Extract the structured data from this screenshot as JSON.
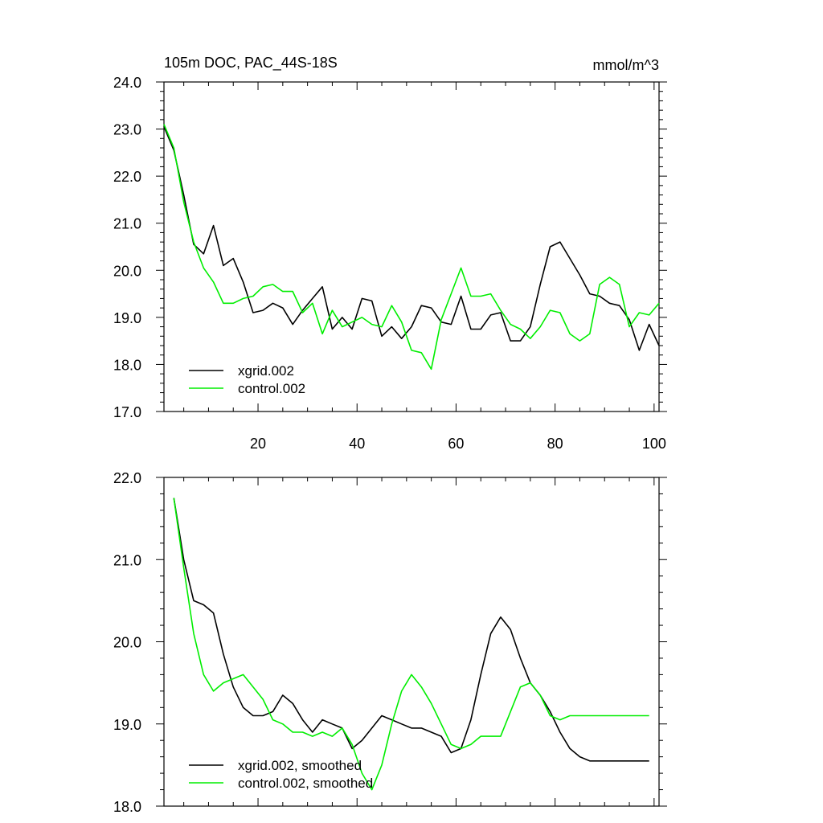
{
  "colors": {
    "series_a": "#000000",
    "series_b": "#00ee00",
    "axis": "#000000"
  },
  "chart_data": [
    {
      "type": "line",
      "title": "105m DOC, PAC_44S-18S",
      "units": "mmol/m^3",
      "xlabel": "",
      "ylabel": "",
      "xlim": [
        1,
        101
      ],
      "ylim": [
        17.0,
        24.0
      ],
      "yticks": [
        "17.0",
        "18.0",
        "19.0",
        "20.0",
        "21.0",
        "22.0",
        "23.0",
        "24.0"
      ],
      "xticks": [
        "20",
        "40",
        "60",
        "80",
        "100"
      ],
      "legend_position": "bottom-left",
      "series": [
        {
          "name": "xgrid.002",
          "color": "#000000",
          "x": [
            1,
            3,
            5,
            7,
            9,
            11,
            13,
            15,
            17,
            19,
            21,
            23,
            25,
            27,
            29,
            31,
            33,
            35,
            37,
            39,
            41,
            43,
            45,
            47,
            49,
            51,
            53,
            55,
            57,
            59,
            61,
            63,
            65,
            67,
            69,
            71,
            73,
            75,
            77,
            79,
            81,
            83,
            85,
            87,
            89,
            91,
            93,
            95,
            97,
            99,
            101
          ],
          "values": [
            23.05,
            22.55,
            21.6,
            20.55,
            20.35,
            20.95,
            20.1,
            20.25,
            19.75,
            19.1,
            19.15,
            19.3,
            19.2,
            18.85,
            19.15,
            19.4,
            19.65,
            18.75,
            19.0,
            18.75,
            19.4,
            19.35,
            18.6,
            18.8,
            18.55,
            18.8,
            19.25,
            19.2,
            18.9,
            18.85,
            19.45,
            18.75,
            18.75,
            19.05,
            19.1,
            18.5,
            18.5,
            18.8,
            19.7,
            20.5,
            20.6,
            20.25,
            19.9,
            19.5,
            19.45,
            19.3,
            19.25,
            18.95,
            18.3,
            18.85,
            18.4
          ]
        },
        {
          "name": "control.002",
          "color": "#00ee00",
          "x": [
            1,
            3,
            5,
            7,
            9,
            11,
            13,
            15,
            17,
            19,
            21,
            23,
            25,
            27,
            29,
            31,
            33,
            35,
            37,
            39,
            41,
            43,
            45,
            47,
            49,
            51,
            53,
            55,
            57,
            59,
            61,
            63,
            65,
            67,
            69,
            71,
            73,
            75,
            77,
            79,
            81,
            83,
            85,
            87,
            89,
            91,
            93,
            95,
            97,
            99,
            101
          ],
          "values": [
            23.1,
            22.6,
            21.45,
            20.6,
            20.05,
            19.75,
            19.3,
            19.3,
            19.4,
            19.45,
            19.65,
            19.7,
            19.55,
            19.55,
            19.1,
            19.3,
            18.65,
            19.15,
            18.8,
            18.9,
            19.0,
            18.85,
            18.8,
            19.25,
            18.9,
            18.3,
            18.25,
            17.9,
            18.95,
            19.5,
            20.05,
            19.45,
            19.45,
            19.5,
            19.15,
            18.85,
            18.75,
            18.55,
            18.8,
            19.15,
            19.1,
            18.65,
            18.5,
            18.65,
            19.7,
            19.85,
            19.7,
            18.8,
            19.1,
            19.05,
            19.3
          ]
        }
      ]
    },
    {
      "type": "line",
      "title": "",
      "xlabel": "",
      "ylabel": "",
      "xlim": [
        1,
        101
      ],
      "ylim": [
        18.0,
        22.0
      ],
      "yticks": [
        "18.0",
        "19.0",
        "20.0",
        "21.0",
        "22.0"
      ],
      "legend_position": "bottom-left",
      "series": [
        {
          "name": "xgrid.002, smoothed",
          "color": "#000000",
          "x": [
            3,
            5,
            7,
            9,
            11,
            13,
            15,
            17,
            19,
            21,
            23,
            25,
            27,
            29,
            31,
            33,
            35,
            37,
            39,
            41,
            43,
            45,
            47,
            49,
            51,
            53,
            55,
            57,
            59,
            61,
            63,
            65,
            67,
            69,
            71,
            73,
            75,
            77,
            79,
            81,
            83,
            85,
            87,
            89,
            91,
            93,
            95,
            97,
            99
          ],
          "values": [
            21.75,
            21.0,
            20.5,
            20.45,
            20.35,
            19.85,
            19.45,
            19.2,
            19.1,
            19.1,
            19.15,
            19.35,
            19.25,
            19.05,
            18.9,
            19.05,
            19.0,
            18.95,
            18.7,
            18.8,
            18.95,
            19.1,
            19.05,
            19.0,
            18.95,
            18.95,
            18.9,
            18.85,
            18.65,
            18.7,
            19.05,
            19.6,
            20.1,
            20.3,
            20.15,
            19.8,
            19.5,
            19.35,
            19.15,
            18.9,
            18.7,
            18.6,
            18.55,
            18.55,
            18.55,
            18.55,
            18.55,
            18.55,
            18.55
          ]
        },
        {
          "name": "control.002, smoothed",
          "color": "#00ee00",
          "x": [
            3,
            5,
            7,
            9,
            11,
            13,
            15,
            17,
            19,
            21,
            23,
            25,
            27,
            29,
            31,
            33,
            35,
            37,
            39,
            41,
            43,
            45,
            47,
            49,
            51,
            53,
            55,
            57,
            59,
            61,
            63,
            65,
            67,
            69,
            71,
            73,
            75,
            77,
            79,
            81,
            83,
            85,
            87,
            89,
            91,
            93,
            95,
            97,
            99
          ],
          "values": [
            21.75,
            20.9,
            20.1,
            19.6,
            19.4,
            19.5,
            19.55,
            19.6,
            19.45,
            19.3,
            19.05,
            19.0,
            18.9,
            18.9,
            18.85,
            18.9,
            18.85,
            18.95,
            18.75,
            18.4,
            18.2,
            18.5,
            19.0,
            19.4,
            19.6,
            19.45,
            19.25,
            19.0,
            18.75,
            18.7,
            18.75,
            18.85,
            18.85,
            18.85,
            19.15,
            19.45,
            19.5,
            19.35,
            19.1,
            19.05,
            19.1,
            19.1,
            19.1,
            19.1,
            19.1,
            19.1,
            19.1,
            19.1,
            19.1
          ]
        }
      ]
    }
  ]
}
